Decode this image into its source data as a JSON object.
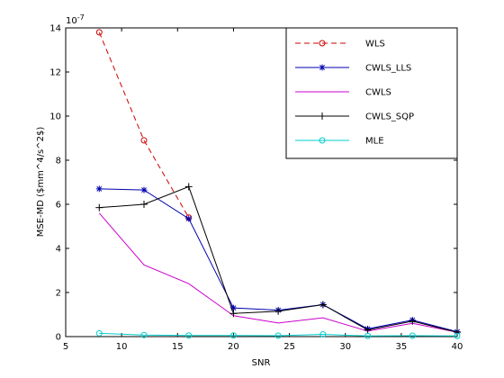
{
  "chart_data": {
    "type": "line",
    "xlabel": "SNR",
    "ylabel": "MSE-MD ($mm^4/s^2$)",
    "y_exponent": "10",
    "y_exponent_power": "-7",
    "xlim": [
      5,
      40
    ],
    "ylim": [
      0,
      14
    ],
    "xticks": [
      5,
      10,
      15,
      20,
      25,
      30,
      35,
      40
    ],
    "yticks": [
      0,
      2,
      4,
      6,
      8,
      10,
      12,
      14
    ],
    "grid": false,
    "legend_position": "top-right",
    "x": [
      8,
      12,
      16,
      20,
      24,
      28,
      32,
      36,
      40
    ],
    "series": [
      {
        "name": "WLS",
        "color": "#cc0000",
        "dash": "dashed",
        "marker": "circle",
        "values": [
          13.8,
          8.9,
          5.4,
          null,
          null,
          null,
          null,
          null,
          null
        ]
      },
      {
        "name": "CWLS_LLS",
        "color": "#0000b0",
        "dash": "solid",
        "marker": "star",
        "values": [
          6.7,
          6.65,
          5.35,
          1.3,
          1.2,
          1.45,
          0.35,
          0.75,
          0.22
        ]
      },
      {
        "name": "CWLS",
        "color": "#cc00cc",
        "dash": "solid",
        "marker": "none",
        "values": [
          5.6,
          3.25,
          2.4,
          0.95,
          0.62,
          0.85,
          0.25,
          0.6,
          0.2
        ]
      },
      {
        "name": "CWLS_SQP",
        "color": "#000000",
        "dash": "solid",
        "marker": "plus",
        "values": [
          5.85,
          6.0,
          6.8,
          1.05,
          1.15,
          1.45,
          0.3,
          0.7,
          0.2
        ]
      },
      {
        "name": "MLE",
        "color": "#00cccc",
        "dash": "solid",
        "marker": "circle",
        "values": [
          0.15,
          0.07,
          0.05,
          0.05,
          0.04,
          0.1,
          0.03,
          0.04,
          0.03
        ]
      }
    ]
  }
}
